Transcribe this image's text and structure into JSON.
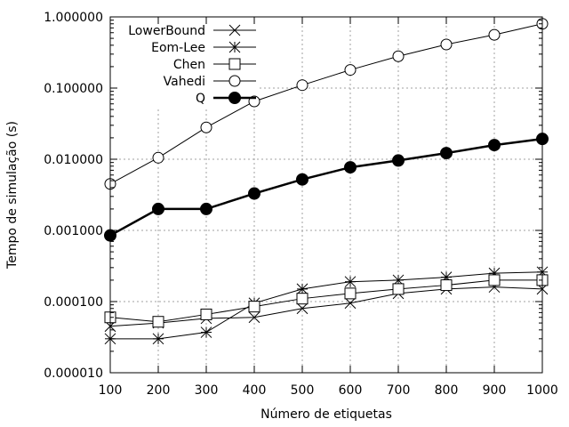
{
  "chart_data": {
    "type": "line",
    "title": "",
    "xlabel": "Número de etiquetas",
    "ylabel": "Tempo de simulação (s)",
    "x": [
      100,
      200,
      300,
      400,
      500,
      600,
      700,
      800,
      900,
      1000
    ],
    "xlim": [
      100,
      1000
    ],
    "ylim": [
      1e-05,
      1
    ],
    "yscale": "log",
    "xticks": [
      "100",
      "200",
      "300",
      "400",
      "500",
      "600",
      "700",
      "800",
      "900",
      "1000"
    ],
    "yticks": [
      "0.000010",
      "0.000100",
      "0.001000",
      "0.010000",
      "0.100000",
      "1.000000"
    ],
    "grid": true,
    "legend_position": "top-left",
    "series": [
      {
        "name": "LowerBound",
        "marker": "x",
        "values": [
          4.5e-05,
          5e-05,
          5.8e-05,
          6e-05,
          8e-05,
          9.5e-05,
          0.00013,
          0.00015,
          0.00016,
          0.00015
        ]
      },
      {
        "name": "Eom-Lee",
        "marker": "star",
        "values": [
          3e-05,
          3e-05,
          3.7e-05,
          9.5e-05,
          0.00015,
          0.00019,
          0.0002,
          0.00022,
          0.00025,
          0.00026
        ]
      },
      {
        "name": "Chen",
        "marker": "square",
        "values": [
          6e-05,
          5.2e-05,
          6.6e-05,
          8.5e-05,
          0.00011,
          0.00013,
          0.00015,
          0.00017,
          0.0002,
          0.0002
        ]
      },
      {
        "name": "Vahedi",
        "marker": "circle-open",
        "values": [
          0.0045,
          0.0105,
          0.028,
          0.065,
          0.11,
          0.18,
          0.28,
          0.41,
          0.56,
          0.8
        ]
      },
      {
        "name": "Q",
        "marker": "circle-filled",
        "values": [
          0.00085,
          0.002,
          0.002,
          0.0033,
          0.0052,
          0.0077,
          0.0096,
          0.0122,
          0.0158,
          0.0193
        ]
      }
    ]
  }
}
